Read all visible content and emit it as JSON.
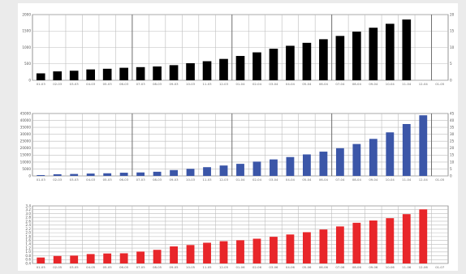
{
  "chart_data": [
    {
      "type": "bar",
      "categories": [
        "01-03",
        "02-03",
        "03-03",
        "04-03",
        "05-03",
        "06-03",
        "07-03",
        "08-03",
        "09-03",
        "10-03",
        "11-03",
        "12-03",
        "01-04",
        "02-04",
        "03-04",
        "04-04",
        "05-04",
        "06-04",
        "07-04",
        "08-04",
        "09-04",
        "10-04",
        "11-04",
        "12-04",
        "01-05"
      ],
      "values": [
        210,
        270,
        290,
        330,
        350,
        380,
        400,
        420,
        460,
        520,
        580,
        650,
        740,
        850,
        960,
        1050,
        1140,
        1250,
        1350,
        1480,
        1600,
        1720,
        1850,
        null,
        null
      ],
      "ylim": [
        0,
        2000
      ],
      "yticks": [
        "0",
        "500",
        "1000",
        "1500",
        "2000"
      ],
      "ylim_right": [
        0,
        20
      ],
      "yticks_right": [
        "0",
        "5",
        "10",
        "15",
        "20"
      ],
      "color": "#000000",
      "grid": true
    },
    {
      "type": "bar",
      "categories": [
        "01-03",
        "02-03",
        "03-03",
        "04-03",
        "05-03",
        "06-03",
        "07-03",
        "08-03",
        "09-03",
        "10-03",
        "11-03",
        "12-03",
        "01-04",
        "02-04",
        "03-04",
        "04-04",
        "05-04",
        "06-04",
        "07-04",
        "08-04",
        "09-04",
        "10-04",
        "11-04",
        "12-04",
        "01-05"
      ],
      "values": [
        600,
        1200,
        1400,
        1700,
        1900,
        2300,
        2500,
        3000,
        4200,
        5100,
        6300,
        7500,
        8700,
        10300,
        11900,
        13600,
        15500,
        17500,
        20000,
        23000,
        26700,
        31400,
        37400,
        43700,
        null
      ],
      "ylim": [
        0,
        45000
      ],
      "yticks": [
        "0",
        "5000",
        "10000",
        "15000",
        "20000",
        "25000",
        "30000",
        "35000",
        "40000",
        "45000"
      ],
      "ylim_right": [
        0,
        45
      ],
      "yticks_right": [
        "0",
        "5",
        "10",
        "15",
        "20",
        "25",
        "30",
        "35",
        "40",
        "45"
      ],
      "color": "#3b56a8",
      "grid": true
    },
    {
      "type": "bar",
      "categories": [
        "01-05",
        "02-05",
        "03-05",
        "04-05",
        "05-05",
        "06-05",
        "07-05",
        "08-05",
        "09-05",
        "10-05",
        "11-05",
        "12-05",
        "01-06",
        "02-06",
        "03-06",
        "04-06",
        "05-06",
        "06-06",
        "07-06",
        "08-06",
        "09-06",
        "10-06",
        "11-06",
        "12-06",
        "01-07"
      ],
      "values": [
        0.71,
        0.79,
        0.81,
        0.89,
        0.92,
        0.93,
        1.02,
        1.11,
        1.29,
        1.36,
        1.48,
        1.56,
        1.61,
        1.69,
        1.79,
        1.91,
        2.03,
        2.17,
        2.33,
        2.52,
        2.64,
        2.76,
        2.97,
        3.22,
        null
      ],
      "ylim": [
        0.4,
        3.4
      ],
      "yticks": [
        "0.4",
        "0.6",
        "0.8",
        "1.0",
        "1.2",
        "1.4",
        "1.6",
        "1.8",
        "2.0",
        "2.2",
        "2.4",
        "2.6",
        "2.8",
        "3.0",
        "3.2",
        "3.4"
      ],
      "color": "#e8262a",
      "grid": true
    }
  ]
}
